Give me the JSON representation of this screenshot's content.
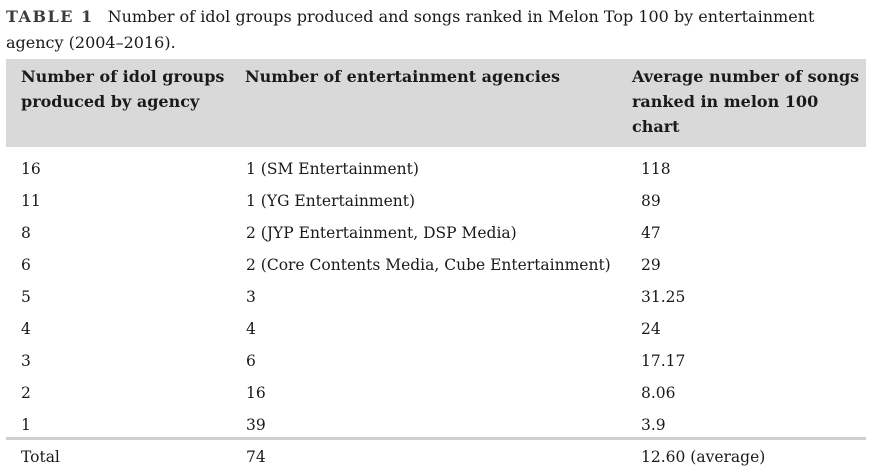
{
  "caption": {
    "label": "TABLE 1",
    "text": "Number of idol groups produced and songs ranked in Melon Top 100 by entertainment agency (2004–2016)."
  },
  "table": {
    "headers": [
      "Number of idol groups produced by agency",
      "Number of entertainment agencies",
      "Average number of songs ranked in melon 100 chart"
    ],
    "rows": [
      [
        "16",
        "1 (SM Entertainment)",
        "118"
      ],
      [
        "11",
        "1 (YG Entertainment)",
        "89"
      ],
      [
        "8",
        "2 (JYP Entertainment, DSP Media)",
        "47"
      ],
      [
        "6",
        "2 (Core Contents Media, Cube Entertainment)",
        "29"
      ],
      [
        "5",
        "3",
        "31.25"
      ],
      [
        "4",
        "4",
        "24"
      ],
      [
        "3",
        "6",
        "17.17"
      ],
      [
        "2",
        "16",
        "8.06"
      ],
      [
        "1",
        "39",
        "3.9"
      ],
      [
        "Total",
        "74",
        "12.60 (average)"
      ]
    ]
  }
}
